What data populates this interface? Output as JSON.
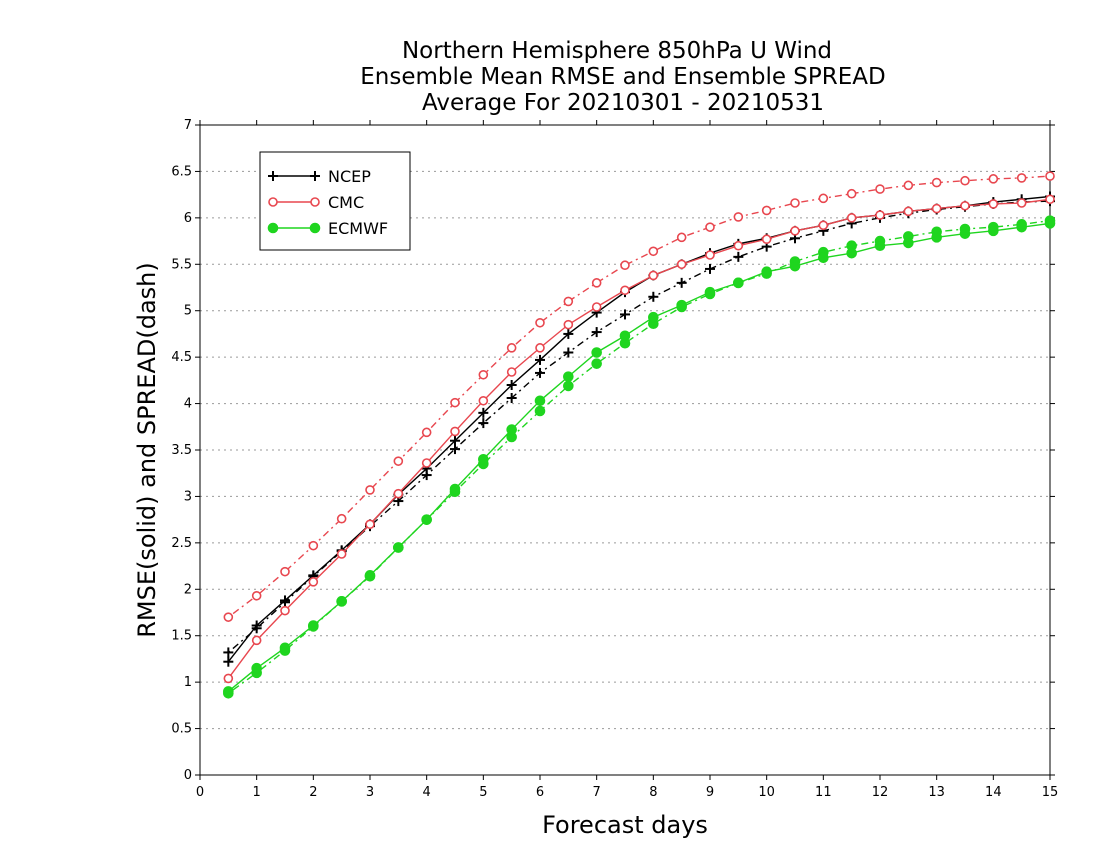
{
  "chart_data": {
    "type": "line",
    "title_lines": [
      "Northern Hemisphere 850hPa U Wind",
      "Ensemble Mean RMSE and Ensemble SPREAD",
      "Average For 20210301 - 20210531"
    ],
    "xlabel": "Forecast days",
    "ylabel": "RMSE(solid) and SPREAD(dash)",
    "xlim": [
      0,
      15
    ],
    "ylim": [
      0,
      7
    ],
    "x_ticks": [
      "0",
      "1",
      "2",
      "3",
      "4",
      "5",
      "6",
      "7",
      "8",
      "9",
      "10",
      "11",
      "12",
      "13",
      "14",
      "15"
    ],
    "y_ticks": [
      "0",
      "0.5",
      "1",
      "1.5",
      "2",
      "2.5",
      "3",
      "3.5",
      "4",
      "4.5",
      "5",
      "5.5",
      "6",
      "6.5",
      "7"
    ],
    "grid": true,
    "legend_position": "top-left",
    "x": [
      0.5,
      1,
      1.5,
      2,
      2.5,
      3,
      3.5,
      4,
      4.5,
      5,
      5.5,
      6,
      6.5,
      7,
      7.5,
      8,
      8.5,
      9,
      9.5,
      10,
      10.5,
      11,
      11.5,
      12,
      12.5,
      13,
      13.5,
      14,
      14.5,
      15
    ],
    "series": [
      {
        "name": "NCEP",
        "color": "#000000",
        "marker": "plus",
        "rmse": [
          1.22,
          1.61,
          1.88,
          2.15,
          2.42,
          2.7,
          3.02,
          3.3,
          3.6,
          3.9,
          4.2,
          4.47,
          4.75,
          4.98,
          5.2,
          5.38,
          5.5,
          5.62,
          5.72,
          5.78,
          5.86,
          5.92,
          6.0,
          6.03,
          6.07,
          6.1,
          6.13,
          6.17,
          6.2,
          6.23
        ],
        "spread": [
          1.32,
          1.58,
          1.86,
          2.14,
          2.41,
          2.68,
          2.95,
          3.23,
          3.51,
          3.79,
          4.06,
          4.33,
          4.55,
          4.77,
          4.96,
          5.15,
          5.3,
          5.45,
          5.58,
          5.69,
          5.78,
          5.86,
          5.94,
          6.0,
          6.05,
          6.09,
          6.12,
          6.15,
          6.17,
          6.18
        ]
      },
      {
        "name": "CMC",
        "color": "#e8474f",
        "marker": "open-circle",
        "rmse": [
          1.04,
          1.45,
          1.77,
          2.08,
          2.38,
          2.7,
          3.03,
          3.36,
          3.7,
          4.03,
          4.34,
          4.6,
          4.85,
          5.04,
          5.22,
          5.38,
          5.5,
          5.6,
          5.7,
          5.77,
          5.86,
          5.92,
          6.0,
          6.03,
          6.07,
          6.1,
          6.13,
          6.15,
          6.16,
          6.2
        ],
        "spread": [
          1.7,
          1.93,
          2.19,
          2.47,
          2.76,
          3.07,
          3.38,
          3.69,
          4.01,
          4.31,
          4.6,
          4.87,
          5.1,
          5.3,
          5.49,
          5.64,
          5.79,
          5.9,
          6.01,
          6.08,
          6.16,
          6.21,
          6.26,
          6.31,
          6.35,
          6.38,
          6.4,
          6.42,
          6.43,
          6.45
        ]
      },
      {
        "name": "ECMWF",
        "color": "#1fd51f",
        "marker": "filled-circle",
        "rmse": [
          0.9,
          1.15,
          1.37,
          1.61,
          1.87,
          2.15,
          2.45,
          2.75,
          3.08,
          3.4,
          3.72,
          4.03,
          4.29,
          4.55,
          4.73,
          4.93,
          5.06,
          5.2,
          5.3,
          5.42,
          5.48,
          5.57,
          5.62,
          5.7,
          5.73,
          5.79,
          5.83,
          5.86,
          5.9,
          5.94
        ],
        "spread": [
          0.88,
          1.1,
          1.34,
          1.6,
          1.87,
          2.14,
          2.45,
          2.75,
          3.05,
          3.35,
          3.64,
          3.92,
          4.19,
          4.43,
          4.65,
          4.86,
          5.04,
          5.18,
          5.3,
          5.4,
          5.53,
          5.63,
          5.7,
          5.75,
          5.8,
          5.85,
          5.88,
          5.9,
          5.93,
          5.97
        ]
      }
    ]
  }
}
